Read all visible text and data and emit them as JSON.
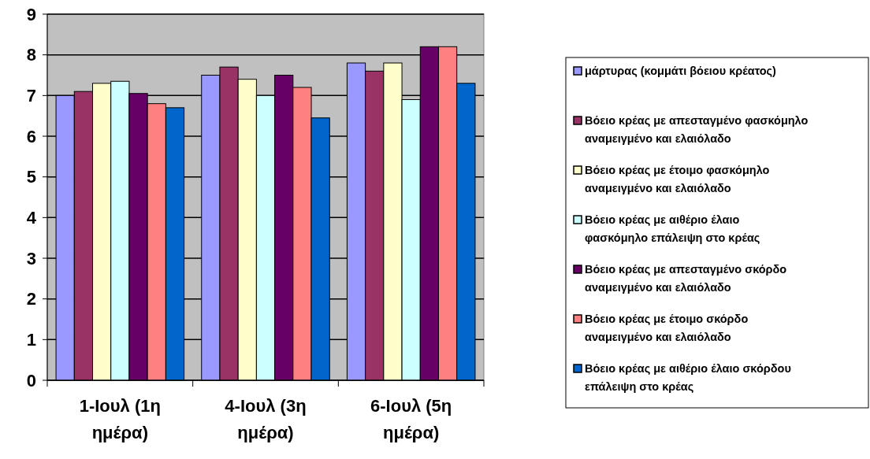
{
  "chart_data": {
    "type": "bar",
    "categories": [
      "1-Ιουλ (1η ημέρα)",
      "4-Ιουλ (3η ημέρα)",
      "6-Ιουλ (5η ημέρα)"
    ],
    "series": [
      {
        "name": "μάρτυρας  (κομμάτι βόειου κρέατος)",
        "color": "#9999ff",
        "values": [
          7.0,
          7.5,
          7.8
        ]
      },
      {
        "name": "Βόειο κρέας με απεσταγμένο φασκόμηλο αναμειγμένο και ελαιόλαδο",
        "color": "#993366",
        "values": [
          7.1,
          7.7,
          7.6
        ]
      },
      {
        "name": "Βόειο κρέας με έτοιμο φασκόμηλο αναμειγμένο και ελαιόλαδο",
        "color": "#ffffcc",
        "values": [
          7.3,
          7.4,
          7.8
        ]
      },
      {
        "name": "Βόειο κρέας με αιθέριο έλαιο φασκόμηλο επάλειψη στο κρέας",
        "color": "#ccffff",
        "values": [
          7.35,
          7.0,
          6.9
        ]
      },
      {
        "name": "Βόειο κρέας με απεσταγμένο σκόρδο αναμειγμένο και ελαιόλαδο",
        "color": "#660066",
        "values": [
          7.05,
          7.5,
          8.2
        ]
      },
      {
        "name": "Βόειο κρέας με έτοιμο σκόρδο αναμειγμένο και ελαιόλαδο",
        "color": "#ff8080",
        "values": [
          6.8,
          7.2,
          8.2
        ]
      },
      {
        "name": "Βόειο κρέας με αιθέριο έλαιο σκόρδου επάλειψη στο κρέας",
        "color": "#0066cc",
        "values": [
          6.7,
          6.45,
          7.3
        ]
      }
    ],
    "ylim": [
      0,
      9
    ],
    "yticks": [
      0,
      1,
      2,
      3,
      4,
      5,
      6,
      7,
      8,
      9
    ],
    "grid": "y",
    "legend": "right"
  }
}
